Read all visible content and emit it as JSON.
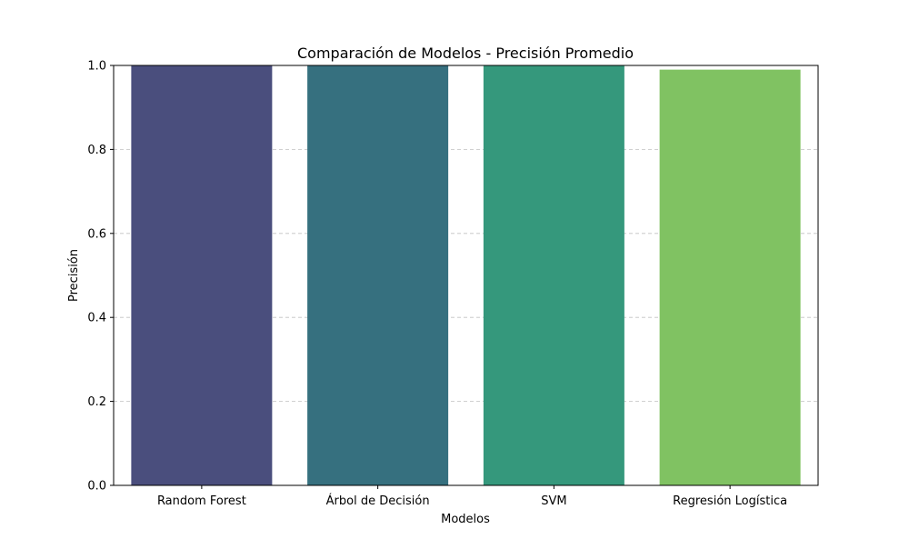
{
  "chart_data": {
    "type": "bar",
    "title": "Comparación de Modelos - Precisión Promedio",
    "xlabel": "Modelos",
    "ylabel": "Precisión",
    "categories": [
      "Random Forest",
      "Árbol de Decisión",
      "SVM",
      "Regresión Logística"
    ],
    "values": [
      1.0,
      1.0,
      1.0,
      0.99
    ],
    "colors": [
      "#4a4e7d",
      "#36707f",
      "#35987c",
      "#80c262"
    ],
    "ylim": [
      0,
      1
    ],
    "yticks": [
      "0.0",
      "0.2",
      "0.4",
      "0.6",
      "0.8",
      "1.0"
    ],
    "ytick_values": [
      0,
      0.2,
      0.4,
      0.6,
      0.8,
      1.0
    ],
    "grid": "y-dashed",
    "grid_color": "#c0c0c0"
  }
}
